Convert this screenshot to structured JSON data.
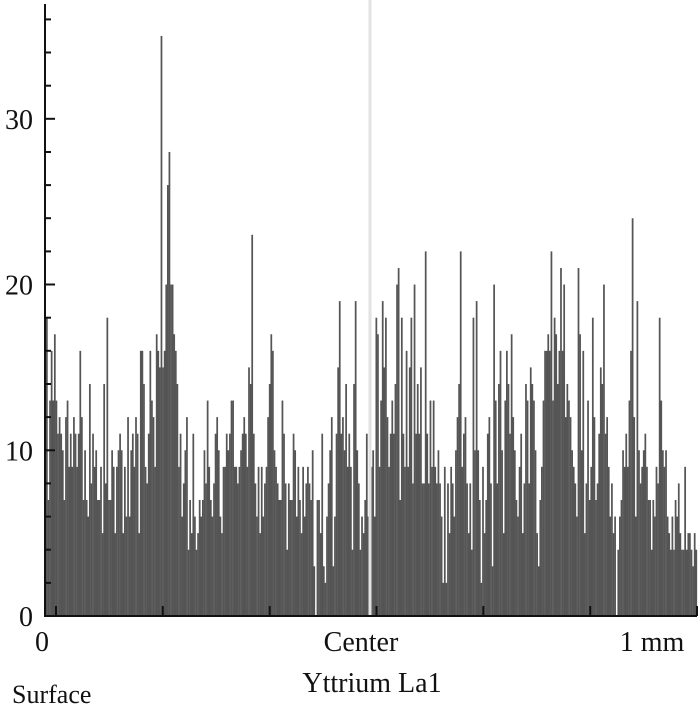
{
  "chart_data": {
    "type": "bar",
    "title": "",
    "xlabel": "Yttrium La1",
    "ylabel": "",
    "ylim": [
      0,
      37
    ],
    "yticks": [
      0,
      10,
      20,
      30
    ],
    "ytick_labels": [
      "0",
      "10",
      "20",
      "30"
    ],
    "xtick_labels": [
      "0",
      "Center",
      "1 mm"
    ],
    "corner_label": "Surface",
    "bar_color": "#555555",
    "grid": false,
    "values": [
      18,
      7,
      13,
      16,
      13,
      17,
      13,
      11,
      12,
      11,
      10,
      7,
      12,
      13,
      9,
      11,
      9,
      12,
      11,
      9,
      11,
      16,
      12,
      7,
      10,
      7,
      6,
      14,
      8,
      11,
      9,
      10,
      7,
      7,
      9,
      5,
      14,
      8,
      18,
      7,
      7,
      10,
      9,
      5,
      9,
      10,
      11,
      10,
      5,
      9,
      6,
      12,
      6,
      10,
      11,
      9,
      12,
      11,
      5,
      16,
      16,
      14,
      9,
      8,
      11,
      16,
      13,
      12,
      9,
      17,
      16,
      15,
      35,
      15,
      16,
      20,
      26,
      28,
      20,
      20,
      17,
      16,
      14,
      9,
      11,
      6,
      8,
      10,
      12,
      4,
      7,
      5,
      11,
      6,
      4,
      5,
      7,
      6,
      7,
      10,
      8,
      13,
      9,
      7,
      6,
      8,
      11,
      12,
      10,
      6,
      5,
      9,
      9,
      11,
      10,
      11,
      13,
      13,
      9,
      9,
      8,
      9,
      10,
      11,
      12,
      11,
      9,
      15,
      14,
      23,
      11,
      8,
      6,
      9,
      5,
      9,
      6,
      8,
      9,
      12,
      14,
      17,
      16,
      10,
      9,
      8,
      7,
      7,
      13,
      11,
      8,
      4,
      8,
      7,
      7,
      11,
      10,
      6,
      9,
      7,
      5,
      9,
      6,
      8,
      9,
      8,
      7,
      10,
      3,
      0,
      7,
      7,
      5,
      11,
      3,
      2,
      6,
      8,
      10,
      12,
      3,
      6,
      11,
      15,
      19,
      11,
      12,
      10,
      14,
      9,
      11,
      9,
      4,
      14,
      19,
      10,
      8,
      4,
      6,
      5,
      7,
      11,
      6,
      10,
      9,
      10,
      6,
      18,
      17,
      9,
      13,
      19,
      15,
      18,
      12,
      9,
      11,
      13,
      11,
      14,
      20,
      21,
      7,
      18,
      11,
      9,
      16,
      9,
      15,
      18,
      8,
      20,
      11,
      14,
      11,
      15,
      8,
      8,
      22,
      11,
      8,
      13,
      9,
      13,
      9,
      8,
      10,
      8,
      6,
      2,
      9,
      2,
      8,
      5,
      9,
      8,
      6,
      10,
      12,
      14,
      22,
      9,
      11,
      12,
      8,
      5,
      8,
      4,
      18,
      10,
      19,
      10,
      7,
      2,
      9,
      5,
      7,
      11,
      12,
      8,
      3,
      20,
      13,
      8,
      14,
      16,
      10,
      5,
      13,
      16,
      14,
      11,
      17,
      12,
      10,
      7,
      6,
      9,
      11,
      5,
      8,
      14,
      13,
      8,
      15,
      14,
      13,
      10,
      5,
      3,
      7,
      9,
      13,
      16,
      16,
      17,
      16,
      22,
      13,
      18,
      17,
      14,
      16,
      21,
      16,
      20,
      12,
      14,
      13,
      12,
      10,
      9,
      8,
      6,
      21,
      17,
      10,
      16,
      5,
      8,
      13,
      7,
      9,
      18,
      12,
      7,
      8,
      11,
      15,
      14,
      20,
      11,
      12,
      9,
      6,
      8,
      5,
      6,
      0,
      4,
      6,
      7,
      10,
      9,
      11,
      9,
      13,
      16,
      24,
      12,
      6,
      19,
      10,
      8,
      9,
      10,
      11,
      9,
      7,
      7,
      4,
      7,
      6,
      9,
      8,
      18,
      13,
      10,
      9,
      10,
      6,
      5,
      4,
      6,
      4,
      7,
      6,
      8,
      5,
      4,
      4,
      9,
      4,
      5,
      5,
      4,
      3,
      5,
      4
    ]
  }
}
